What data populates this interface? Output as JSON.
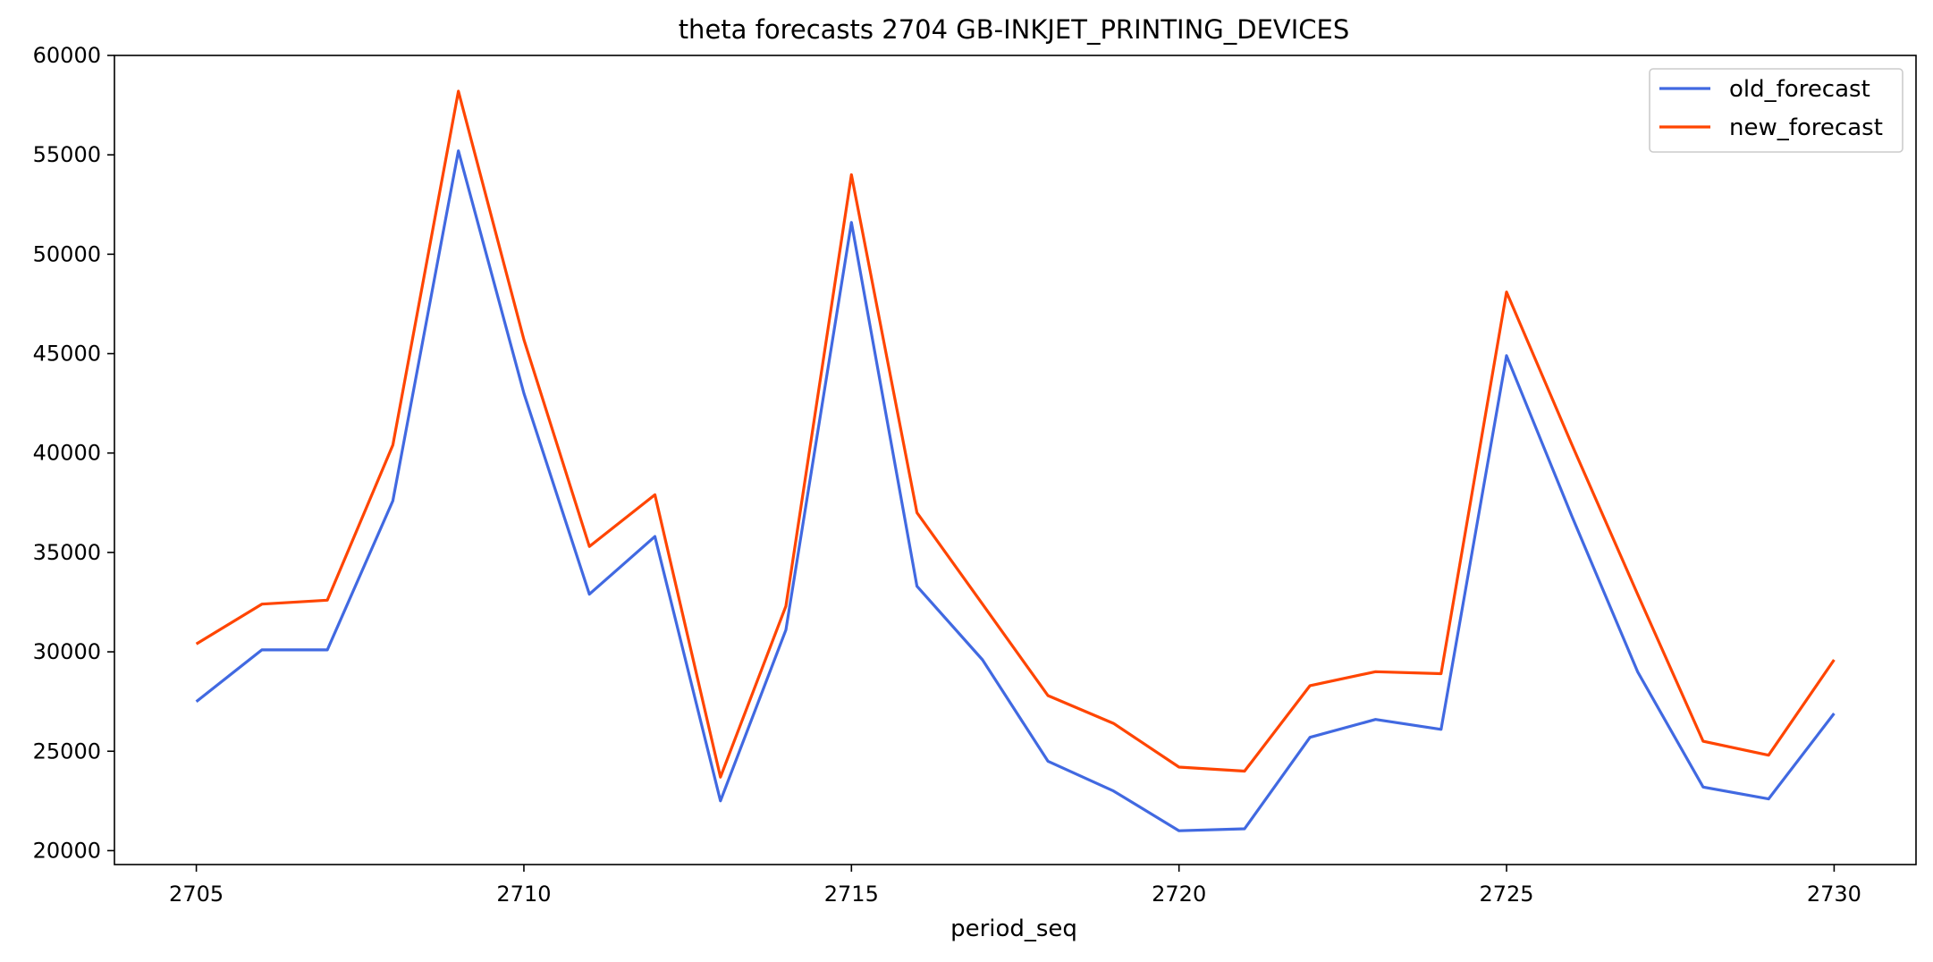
{
  "chart_data": {
    "type": "line",
    "title": "theta forecasts 2704 GB-INKJET_PRINTING_DEVICES",
    "xlabel": "period_seq",
    "ylabel": "",
    "x": [
      2705,
      2706,
      2707,
      2708,
      2709,
      2710,
      2711,
      2712,
      2713,
      2714,
      2715,
      2716,
      2717,
      2718,
      2719,
      2720,
      2721,
      2722,
      2723,
      2724,
      2725,
      2726,
      2727,
      2728,
      2729,
      2730
    ],
    "xlim": [
      2703.75,
      2731.25
    ],
    "ylim": [
      19300,
      60000
    ],
    "xticks": [
      2705,
      2710,
      2715,
      2720,
      2725,
      2730
    ],
    "yticks": [
      20000,
      25000,
      30000,
      35000,
      40000,
      45000,
      50000,
      55000,
      60000
    ],
    "grid": false,
    "legend_position": "top-right",
    "series": [
      {
        "name": "old_forecast",
        "color": "#4169e1",
        "values": [
          27500,
          30100,
          30100,
          37600,
          55200,
          43000,
          32900,
          35800,
          22500,
          31100,
          51600,
          33300,
          29600,
          24500,
          23000,
          21000,
          21100,
          25700,
          26600,
          26100,
          44900,
          36800,
          29000,
          23200,
          22600,
          26900
        ]
      },
      {
        "name": "new_forecast",
        "color": "#ff4500",
        "values": [
          30400,
          32400,
          32600,
          40400,
          58200,
          45700,
          35300,
          37900,
          23700,
          32300,
          54000,
          37000,
          32400,
          27800,
          26400,
          24200,
          24000,
          28300,
          29000,
          28900,
          48100,
          40400,
          32900,
          25500,
          24800,
          29600
        ]
      }
    ]
  }
}
